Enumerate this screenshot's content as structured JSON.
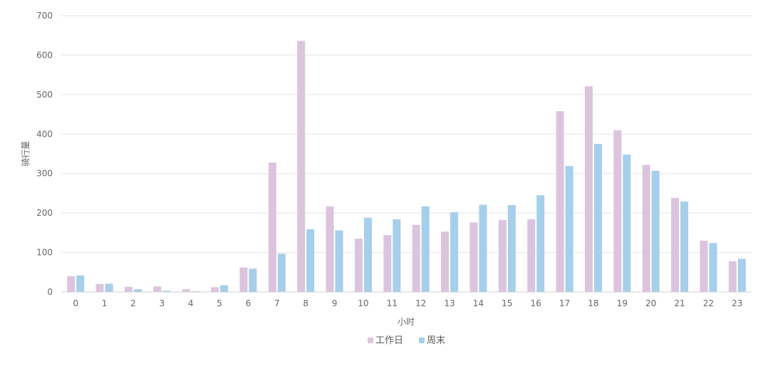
{
  "chart_data": {
    "type": "bar",
    "title": "",
    "xlabel": "小时",
    "ylabel": "骑行量",
    "ylim": [
      0,
      700
    ],
    "yticks": [
      "0",
      "100",
      "200",
      "300",
      "400",
      "500",
      "600",
      "700"
    ],
    "categories": [
      "0",
      "1",
      "2",
      "3",
      "4",
      "5",
      "6",
      "7",
      "8",
      "9",
      "10",
      "11",
      "12",
      "13",
      "14",
      "15",
      "16",
      "17",
      "18",
      "19",
      "20",
      "21",
      "22",
      "23"
    ],
    "series": [
      {
        "name": "工作日",
        "color": "#dcc4de",
        "values": [
          40,
          20,
          13,
          14,
          7,
          12,
          62,
          328,
          636,
          217,
          135,
          144,
          170,
          153,
          176,
          182,
          184,
          458,
          521,
          410,
          322,
          238,
          130,
          78
        ]
      },
      {
        "name": "周末",
        "color": "#a5cfeb",
        "values": [
          42,
          21,
          7,
          3,
          2,
          17,
          59,
          97,
          159,
          156,
          188,
          184,
          217,
          202,
          221,
          220,
          245,
          319,
          375,
          348,
          307,
          229,
          124,
          84
        ]
      }
    ],
    "grid": true,
    "legend_position": "bottom-center"
  }
}
